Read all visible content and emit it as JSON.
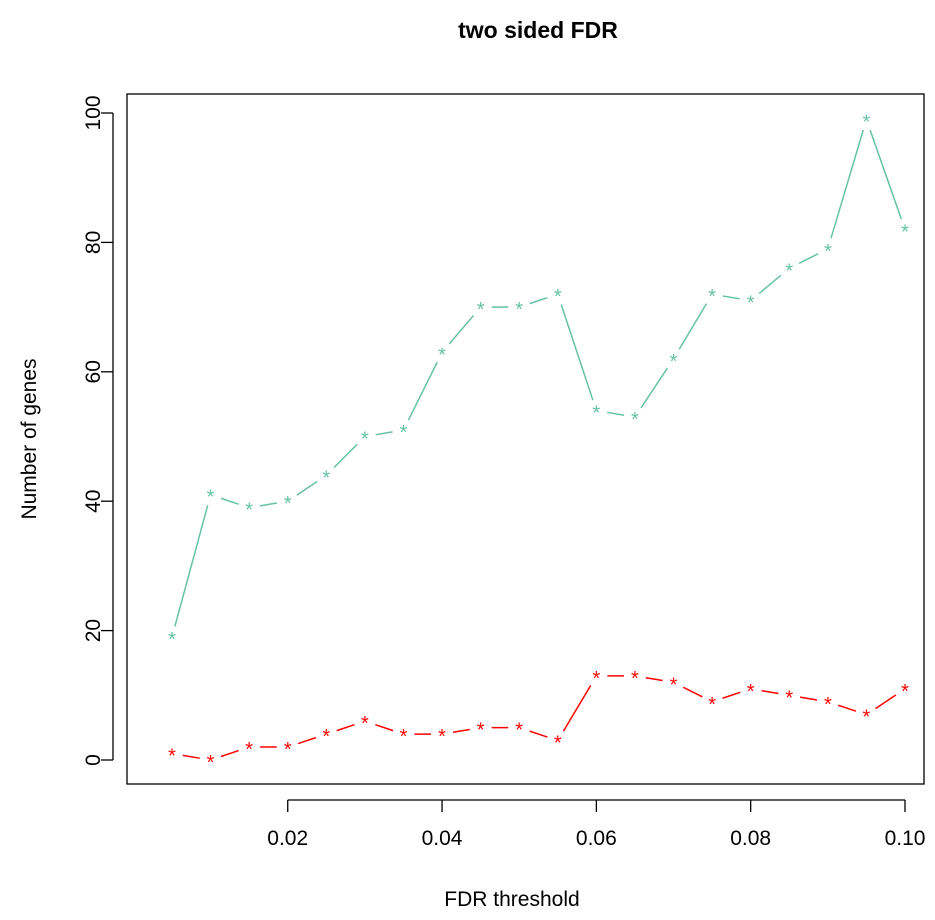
{
  "chart_data": {
    "type": "line",
    "title": "two sided FDR",
    "xlabel": "FDR threshold",
    "ylabel": "Number of genes",
    "xlim": [
      0.005,
      0.1
    ],
    "ylim": [
      0,
      100
    ],
    "xticks": [
      0.02,
      0.04,
      0.06,
      0.08,
      0.1
    ],
    "xtick_labels": [
      "0.02",
      "0.04",
      "0.06",
      "0.08",
      "0.10"
    ],
    "yticks": [
      0,
      20,
      40,
      60,
      80,
      100
    ],
    "ytick_labels": [
      "0",
      "20",
      "40",
      "60",
      "80",
      "100"
    ],
    "grid": false,
    "legend": "none",
    "marker": "*",
    "x": [
      0.005,
      0.01,
      0.015,
      0.02,
      0.025,
      0.03,
      0.035,
      0.04,
      0.045,
      0.05,
      0.055,
      0.06,
      0.065,
      0.07,
      0.075,
      0.08,
      0.085,
      0.09,
      0.095,
      0.1
    ],
    "series": [
      {
        "color": "#66c2a5",
        "values": [
          19,
          41,
          39,
          40,
          44,
          50,
          51,
          63,
          70,
          70,
          72,
          54,
          53,
          62,
          72,
          71,
          76,
          79,
          99,
          82
        ]
      },
      {
        "color": "#ff0000",
        "values": [
          1,
          0,
          2,
          2,
          4,
          6,
          4,
          4,
          5,
          5,
          3,
          13,
          13,
          12,
          9,
          11,
          10,
          9,
          7,
          11
        ]
      }
    ]
  }
}
